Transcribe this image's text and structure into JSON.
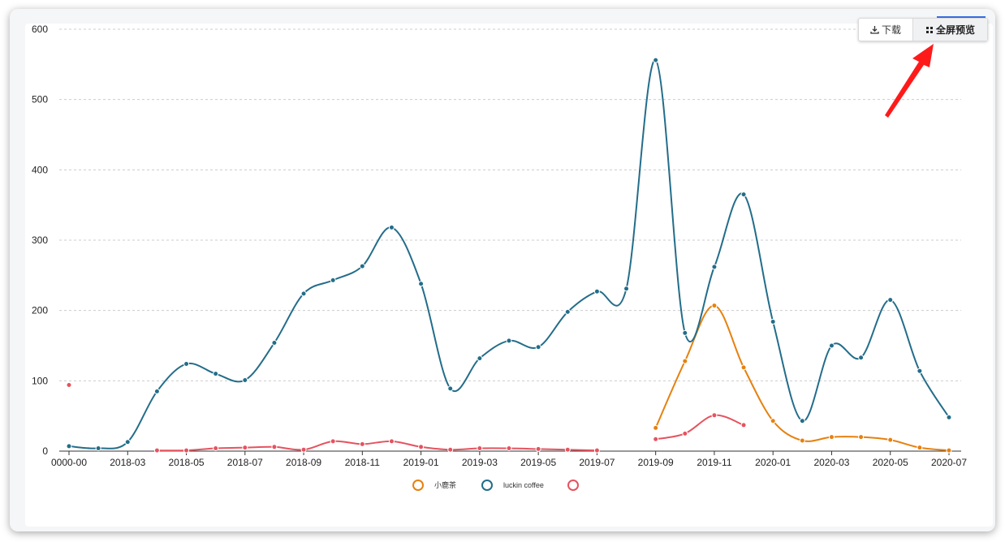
{
  "toolbar": {
    "download_label": "下载",
    "fullscreen_label": "全屏预览"
  },
  "colors": {
    "series_orange": "#e6810f",
    "series_blue": "#236d8a",
    "series_red": "#e5535f",
    "annotation_arrow": "#ff1a1a",
    "gridline": "#cccccc"
  },
  "chart_data": {
    "type": "line",
    "title": "",
    "xlabel": "",
    "ylabel": "",
    "ylim": [
      0,
      600
    ],
    "yticks": [
      0,
      100,
      200,
      300,
      400,
      500,
      600
    ],
    "grid": true,
    "legend_position": "bottom-center",
    "x_ticks": [
      {
        "index": 0,
        "label": "0000-00"
      },
      {
        "index": 2,
        "label": "2018-03"
      },
      {
        "index": 4,
        "label": "2018-05"
      },
      {
        "index": 6,
        "label": "2018-07"
      },
      {
        "index": 8,
        "label": "2018-09"
      },
      {
        "index": 10,
        "label": "2018-11"
      },
      {
        "index": 12,
        "label": "2019-01"
      },
      {
        "index": 14,
        "label": "2019-03"
      },
      {
        "index": 16,
        "label": "2019-05"
      },
      {
        "index": 18,
        "label": "2019-07"
      },
      {
        "index": 20,
        "label": "2019-09"
      },
      {
        "index": 22,
        "label": "2019-11"
      },
      {
        "index": 24,
        "label": "2020-01"
      },
      {
        "index": 26,
        "label": "2020-03"
      },
      {
        "index": 28,
        "label": "2020-05"
      },
      {
        "index": 30,
        "label": "2020-07"
      }
    ],
    "series": [
      {
        "name": "小鹿茶",
        "color": "#e6810f",
        "points": [
          [
            20,
            33
          ],
          [
            21,
            128
          ],
          [
            22,
            207
          ],
          [
            23,
            119
          ],
          [
            24,
            43
          ],
          [
            25,
            15
          ],
          [
            26,
            20
          ],
          [
            27,
            20
          ],
          [
            28,
            16
          ],
          [
            29,
            5
          ],
          [
            30,
            1
          ]
        ]
      },
      {
        "name": "luckin coffee",
        "color": "#236d8a",
        "points": [
          [
            0,
            7
          ],
          [
            1,
            4
          ],
          [
            2,
            13
          ],
          [
            3,
            85
          ],
          [
            4,
            124
          ],
          [
            5,
            110
          ],
          [
            6,
            101
          ],
          [
            7,
            154
          ],
          [
            8,
            224
          ],
          [
            9,
            243
          ],
          [
            10,
            263
          ],
          [
            11,
            318
          ],
          [
            12,
            238
          ],
          [
            13,
            89
          ],
          [
            14,
            132
          ],
          [
            15,
            157
          ],
          [
            16,
            148
          ],
          [
            17,
            198
          ],
          [
            18,
            227
          ],
          [
            19,
            231
          ],
          [
            20,
            556
          ],
          [
            21,
            168
          ],
          [
            22,
            262
          ],
          [
            23,
            365
          ],
          [
            24,
            184
          ],
          [
            25,
            43
          ],
          [
            26,
            150
          ],
          [
            27,
            133
          ],
          [
            28,
            215
          ],
          [
            29,
            114
          ],
          [
            30,
            48
          ]
        ]
      },
      {
        "name": "",
        "color": "#e5535f",
        "points": [
          [
            0,
            94
          ],
          [
            3,
            1
          ],
          [
            4,
            1
          ],
          [
            5,
            4
          ],
          [
            6,
            5
          ],
          [
            7,
            6
          ],
          [
            8,
            2
          ],
          [
            9,
            14
          ],
          [
            10,
            10
          ],
          [
            11,
            14
          ],
          [
            12,
            6
          ],
          [
            13,
            2
          ],
          [
            14,
            4
          ],
          [
            15,
            4
          ],
          [
            16,
            3
          ],
          [
            17,
            2
          ],
          [
            18,
            1
          ],
          [
            20,
            17
          ],
          [
            21,
            25
          ],
          [
            22,
            51
          ],
          [
            23,
            37
          ]
        ]
      }
    ]
  }
}
